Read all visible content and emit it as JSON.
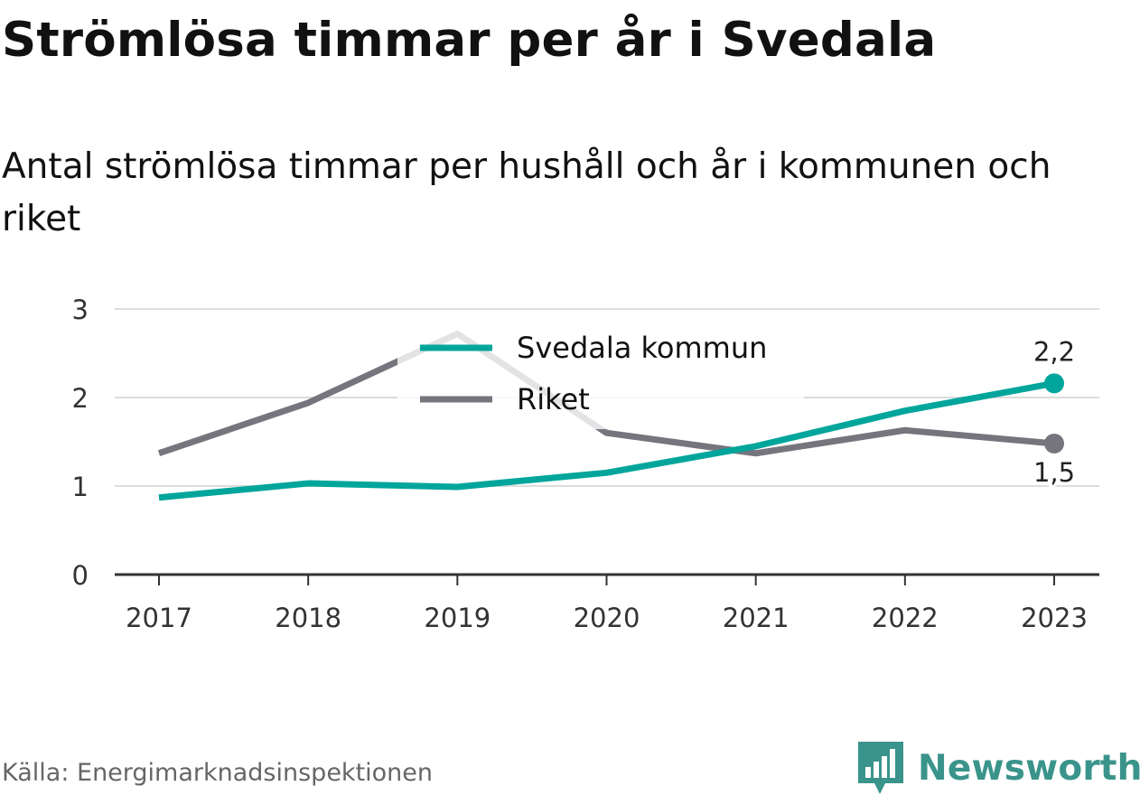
{
  "header": {
    "title": "Strömlösa timmar per år i Svedala",
    "subtitle": "Antal strömlösa timmar per hushåll och år i kommunen och riket"
  },
  "footer": {
    "source": "Källa: Energimarknadsinspektionen",
    "brand": "Newsworthy",
    "brand_icon": "bar-chart-badge-icon",
    "brand_color": "#3a948b"
  },
  "chart_data": {
    "type": "line",
    "title": "Strömlösa timmar per år i Svedala",
    "subtitle": "Antal strömlösa timmar per hushåll och år i kommunen och riket",
    "xlabel": "",
    "ylabel": "",
    "x": [
      "2017",
      "2018",
      "2019",
      "2020",
      "2021",
      "2022",
      "2023"
    ],
    "ylim": [
      0,
      3
    ],
    "yticks": [
      "0",
      "1",
      "2",
      "3"
    ],
    "grid": true,
    "legend": "top-center",
    "series": [
      {
        "name": "Svedala kommun",
        "color": "#00a59b",
        "values": [
          0.87,
          1.03,
          0.99,
          1.15,
          1.45,
          1.85,
          2.16
        ],
        "end_label": "2,2"
      },
      {
        "name": "Riket",
        "color": "#76757d",
        "values": [
          1.37,
          1.94,
          2.72,
          1.6,
          1.37,
          1.63,
          1.48
        ],
        "end_label": "1,5"
      }
    ]
  }
}
